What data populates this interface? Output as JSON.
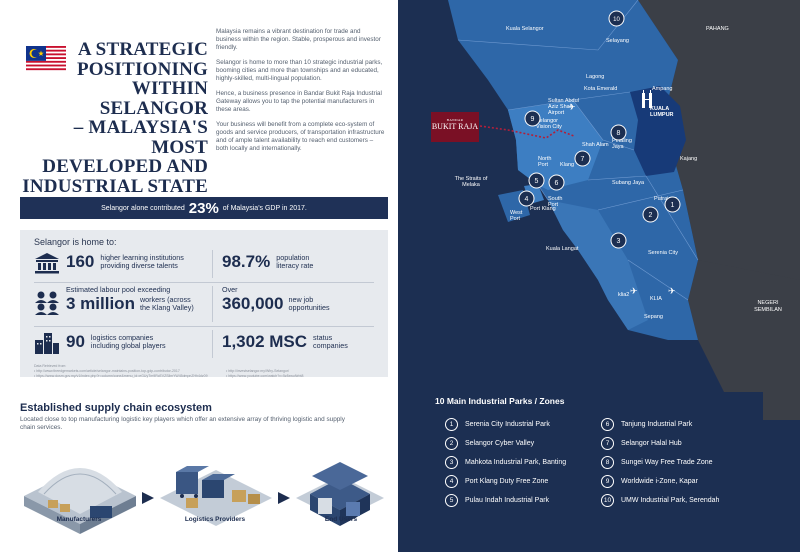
{
  "title": {
    "lines": [
      "A STRATEGIC",
      "POSITIONING",
      "WITHIN SELANGOR",
      "– MALAYSIA'S MOST",
      "DEVELOPED AND",
      "INDUSTRIAL STATE"
    ]
  },
  "intro": {
    "p1": "Malaysia remains a vibrant destination for trade and business within the region. Stable, prosperous and investor friendly.",
    "p2": "Selangor is home to more than 10 strategic industrial parks, booming cities and more than townships and an educated, highly-skilled, multi-lingual population.",
    "p3": "Hence, a business presence in Bandar Bukit Raja Industrial Gateway allows you to tap the potential manufacturers in these areas.",
    "p4": "Your business will benefit from a complete eco-system of goods and service producers, of transportation infrastructure and of ample talent availability to reach end customers – both locally and internationally."
  },
  "gdp": {
    "pre": "Selangor alone contributed",
    "value": "23%",
    "post": "of Malaysia's GDP in 2017."
  },
  "home": {
    "title": "Selangor is home to:",
    "s1": {
      "num": "160",
      "txt1": "higher learning institutions",
      "txt2": "providing diverse talents"
    },
    "s2": {
      "num": "98.7%",
      "txt1": "population",
      "txt2": "literacy rate"
    },
    "s3": {
      "pre": "Estimated labour pool exceeding",
      "num": "3 million",
      "txt1": "workers (across",
      "txt2": "the Klang Valley)"
    },
    "s4": {
      "pre": "Over",
      "num": "360,000",
      "txt1": "new job",
      "txt2": "opportunities"
    },
    "s5": {
      "num": "90",
      "txt1": "logistics companies",
      "txt2": "including global players"
    },
    "s6": {
      "num": "1,302 MSC",
      "txt1": "status",
      "txt2": "companies"
    }
  },
  "sources": {
    "heading": "Data Retrieved from:",
    "l1": "•  http://www.theedgemarkets.com/article/selangor-maintains-position-top-gdp-contributor-2017",
    "l2": "•  https://www.dosm.gov.my/v1/index.php?r=column/cone&menu_id=eGUyTm9RcEVZSllmYW45dmpnZHh4dz09",
    "l3": "•  http://investselangor.my/Why-Selangor/",
    "l4": "•  https://www.youtube.com/watch?v=5z8xwuNrbt8"
  },
  "supply": {
    "title": "Established supply chain ecosystem",
    "sub": "Located close to top manufacturing logistic key players which offer an extensive array of thriving logistic and supply chain services.",
    "labels": [
      "Manufacturers",
      "Logistics Providers",
      "End Users"
    ]
  },
  "map": {
    "brand_small": "BANDAR",
    "brand_big": "BUKIT RAJA",
    "sea": "The Straits of Melaka",
    "places": {
      "kuala_selangor": "Kuala Selangor",
      "pahang": "PAHANG",
      "selayang": "Selayang",
      "lagong": "Lagong",
      "kota_emerald": "Kota Emerald",
      "airport": "Sultan Abdul Aziz Shah Airport",
      "selangor_vision": "Selangor Vision City",
      "ampang": "Ampang",
      "kl": "KUALA LUMPUR",
      "petaling_jaya": "Petaling Jaya",
      "shah_alam": "Shah Alam",
      "north_port": "North Port",
      "klang": "Klang",
      "kajang": "Kajang",
      "subang_jaya": "Subang Jaya",
      "west_port": "West Port",
      "port_klang": "Port Klang",
      "south_port": "South Port",
      "kuala_langat": "Kuala Langat",
      "putrajaya": "Putrajaya",
      "serenia_city": "Serenia City",
      "klia2": "klia2",
      "klia": "KLIA",
      "sepang": "Sepang",
      "negeri": "NEGERI SEMBILAN"
    },
    "pins": [
      "1",
      "2",
      "3",
      "4",
      "5",
      "6",
      "7",
      "8",
      "9",
      "10"
    ]
  },
  "legend": {
    "title": "10 Main Industrial Parks / Zones",
    "items": [
      {
        "n": "1",
        "label": "Serenia City Industrial Park"
      },
      {
        "n": "2",
        "label": "Selangor Cyber Valley"
      },
      {
        "n": "3",
        "label": "Mahkota Industrial Park, Banting"
      },
      {
        "n": "4",
        "label": "Port Klang Duty Free Zone"
      },
      {
        "n": "5",
        "label": "Pulau Indah Industrial Park"
      },
      {
        "n": "6",
        "label": "Tanjung Industrial Park"
      },
      {
        "n": "7",
        "label": "Selangor Halal Hub"
      },
      {
        "n": "8",
        "label": "Sungei Way Free Trade Zone"
      },
      {
        "n": "9",
        "label": "Worldwide i-Zone, Kapar"
      },
      {
        "n": "10",
        "label": "UMW Industrial Park, Serendah"
      }
    ]
  },
  "colors": {
    "navy": "#1c2f52",
    "map_blue": "#2e67a8",
    "map_light": "#3d7ec2",
    "kl": "#173a78",
    "brand": "#7a1025"
  }
}
